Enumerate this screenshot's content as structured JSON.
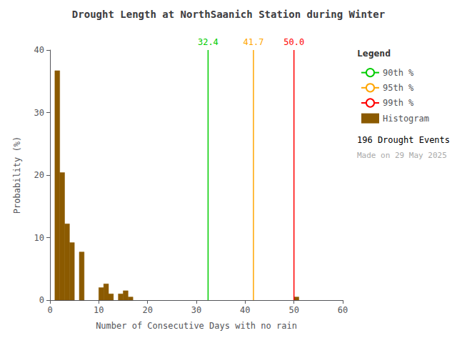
{
  "chart_data": {
    "type": "bar",
    "title": "Drought Length at NorthSaanich Station during Winter",
    "xlabel": "Number of Consecutive Days with no rain",
    "ylabel": "Probability (%)",
    "xlim": [
      0,
      60
    ],
    "ylim": [
      0,
      40
    ],
    "xticks": [
      0,
      10,
      20,
      30,
      40,
      50,
      60
    ],
    "yticks": [
      0,
      10,
      20,
      30,
      40
    ],
    "grid": false,
    "legend": "upper right",
    "legend_title": "Legend",
    "series": [
      {
        "name": "90th %",
        "type": "vline",
        "color": "#00CC00",
        "x": 32.4,
        "label": "32.4"
      },
      {
        "name": "95th %",
        "type": "vline",
        "color": "#FFA500",
        "x": 41.7,
        "label": "41.7"
      },
      {
        "name": "99th %",
        "type": "vline",
        "color": "#FF0000",
        "x": 50.0,
        "label": "50.0"
      },
      {
        "name": "Histogram",
        "type": "bar",
        "color": "#8B5A00",
        "x": [
          1,
          2,
          3,
          4,
          5,
          6,
          7,
          8,
          9,
          10,
          11,
          12,
          13,
          14,
          15,
          16,
          50
        ],
        "values": [
          36.7,
          20.4,
          12.2,
          9.2,
          0.0,
          7.7,
          0.0,
          0.0,
          0.0,
          2.0,
          2.6,
          1.0,
          0.0,
          1.0,
          1.5,
          0.5,
          0.5
        ]
      }
    ],
    "annotations": [
      "196 Drought Events",
      "Made on 29 May 2025"
    ]
  }
}
